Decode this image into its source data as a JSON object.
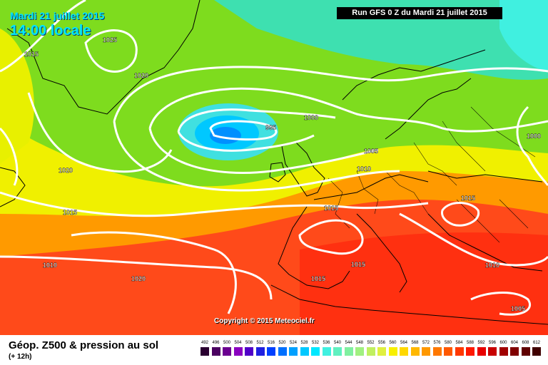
{
  "title": {
    "date": "Mardi 21 juillet 2015",
    "time": "14:00 locale"
  },
  "run_banner": "Run GFS 0 Z du Mardi 21 juillet 2015",
  "copyright": "Copyright © 2015 Meteociel.fr",
  "footer": {
    "product": "Géop. Z500 & pression au sol",
    "lead": "(+ 12h)"
  },
  "isobar_labels": [
    "1015",
    "1025",
    "1020",
    "995",
    "1000",
    "1005",
    "1010",
    "1020",
    "1015",
    "1015",
    "1010",
    "1020",
    "1015",
    "1015",
    "1010",
    "1005",
    "1000"
  ],
  "legend": {
    "values": [
      "492",
      "496",
      "500",
      "504",
      "508",
      "512",
      "516",
      "520",
      "524",
      "528",
      "532",
      "536",
      "540",
      "544",
      "548",
      "552",
      "556",
      "560",
      "564",
      "568",
      "572",
      "576",
      "580",
      "584",
      "588",
      "592",
      "596",
      "600",
      "604",
      "608",
      "612"
    ],
    "colors": [
      "#2a0030",
      "#4a0060",
      "#6a0090",
      "#8a00c0",
      "#5000c8",
      "#2020e0",
      "#0040ff",
      "#0070ff",
      "#00a0ff",
      "#00c8ff",
      "#00e8ff",
      "#40f0e0",
      "#60f0c0",
      "#80f0a0",
      "#a0f080",
      "#c0f060",
      "#e0f040",
      "#f8f000",
      "#ffd800",
      "#ffb800",
      "#ff9800",
      "#ff7800",
      "#ff5800",
      "#ff3800",
      "#ff1800",
      "#e80000",
      "#c80000",
      "#a00000",
      "#800000",
      "#600000",
      "#400000"
    ]
  },
  "colors": {
    "title_text": "#00e5ff",
    "map_green": "#7edc1e",
    "map_yellow": "#f0f000",
    "map_orange": "#ff8a00",
    "map_red": "#ff3a1a",
    "low_cyan": "#00c8ff"
  }
}
